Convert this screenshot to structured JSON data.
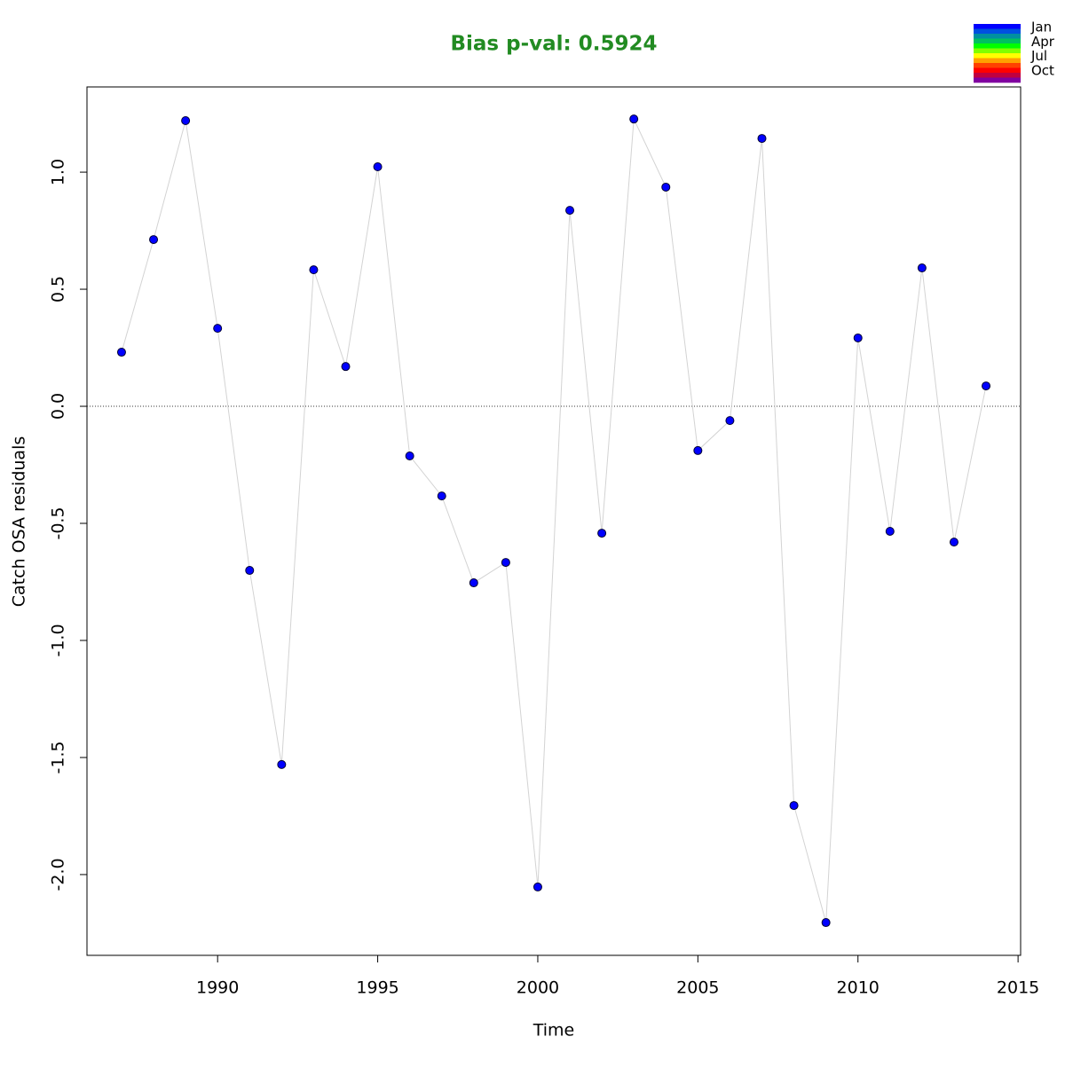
{
  "chart_data": {
    "type": "scatter",
    "title": "Bias p-val: 0.5924",
    "x_label": "Time",
    "y_label": "Catch OSA residuals",
    "x": [
      1987,
      1988,
      1989,
      1990,
      1991,
      1992,
      1993,
      1994,
      1995,
      1996,
      1997,
      1998,
      1999,
      2000,
      2001,
      2002,
      2003,
      2004,
      2005,
      2006,
      2007,
      2008,
      2009,
      2010,
      2011,
      2012,
      2013,
      2014
    ],
    "values": [
      0.231,
      0.712,
      1.22,
      0.333,
      -0.701,
      -1.53,
      0.583,
      0.17,
      1.023,
      -0.212,
      -0.383,
      -0.754,
      -0.667,
      -2.053,
      0.837,
      -0.542,
      1.227,
      0.936,
      -0.189,
      -0.061,
      1.144,
      -1.705,
      -2.205,
      0.292,
      -0.534,
      0.591,
      -0.58,
      0.087
    ],
    "color": "#0000ff",
    "line_color": "#d3d3d3",
    "reference_line": 0,
    "xlim": [
      1985.92,
      2015.08
    ],
    "ylim": [
      -2.345,
      1.364
    ],
    "xticks": [
      1990,
      1995,
      2000,
      2005,
      2010,
      2015
    ],
    "yticks": [
      {
        "value": -2,
        "label": "-2.0"
      },
      {
        "value": -1.5,
        "label": "-1.5"
      },
      {
        "value": -1,
        "label": "-1.0"
      },
      {
        "value": -0.5,
        "label": "-0.5"
      },
      {
        "value": 0,
        "label": "0.0"
      },
      {
        "value": 0.5,
        "label": "0.5"
      },
      {
        "value": 1,
        "label": "1.0"
      }
    ],
    "legend": {
      "position": "top-right",
      "labels": [
        "Jan",
        "Apr",
        "Jul",
        "Oct"
      ],
      "colors": [
        "#0000ff",
        "#0050e0",
        "#0090a0",
        "#00c060",
        "#00ff00",
        "#80ff00",
        "#ffff00",
        "#ffa000",
        "#ff4000",
        "#ff0000",
        "#c00040",
        "#8000a0"
      ]
    }
  }
}
